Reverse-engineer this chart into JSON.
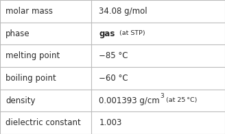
{
  "rows": [
    {
      "label": "molar mass",
      "value": "34.08 g/mol",
      "extra": null,
      "superscript": null
    },
    {
      "label": "phase",
      "value": "gas",
      "extra": "(at STP)",
      "superscript": null,
      "value_bold": true
    },
    {
      "label": "melting point",
      "value": "−85 °C",
      "extra": null,
      "superscript": null
    },
    {
      "label": "boiling point",
      "value": "−60 °C",
      "extra": null,
      "superscript": null
    },
    {
      "label": "density",
      "value": "0.001393 g/cm",
      "extra": "(at 25 °C)",
      "superscript": "3"
    },
    {
      "label": "dielectric constant",
      "value": "1.003",
      "extra": null,
      "superscript": null
    }
  ],
  "col_split": 0.405,
  "bg_color": "#ffffff",
  "text_color": "#2a2a2a",
  "grid_color": "#bbbbbb",
  "label_font_size": 8.5,
  "value_font_size": 8.5,
  "small_font_size": 6.8,
  "super_font_size": 6.5
}
